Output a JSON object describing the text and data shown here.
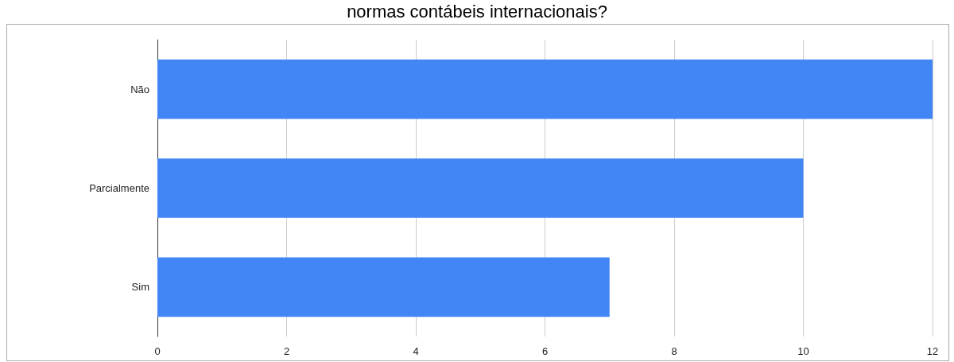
{
  "chart_data": {
    "type": "bar",
    "title": "normas contábeis internacionais?",
    "orientation": "horizontal",
    "categories": [
      "Não",
      "Parcialmente",
      "Sim"
    ],
    "values": [
      12,
      10,
      7
    ],
    "color": "#4285f4",
    "xlim": [
      0,
      12
    ],
    "xticks": [
      0,
      2,
      4,
      6,
      8,
      10,
      12
    ],
    "grid": "x"
  }
}
